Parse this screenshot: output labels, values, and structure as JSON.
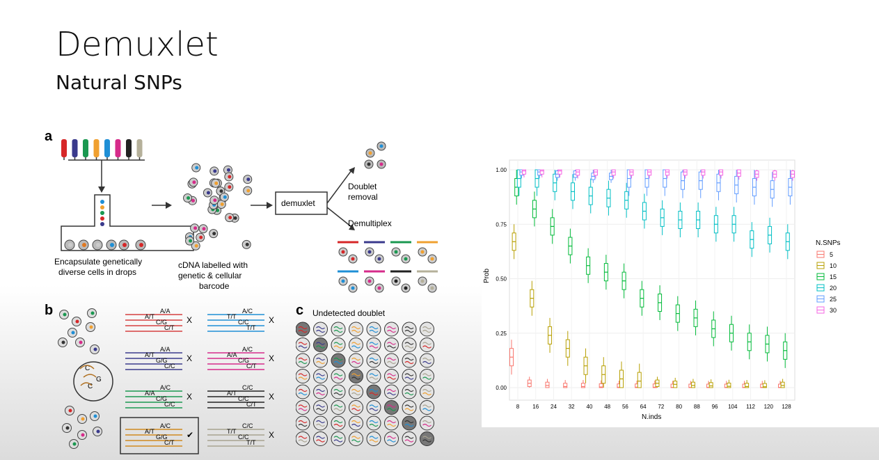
{
  "slide": {
    "title": "Demuxlet",
    "subtitle": "Natural SNPs"
  },
  "figure": {
    "panel_a": {
      "letter": "a",
      "caption_1": "Encapsulate genetically",
      "caption_2": "diverse cells in drops",
      "caption_3": "cDNA labelled with",
      "caption_4": "genetic & cellular",
      "caption_5": "barcode",
      "box_label": "demuxlet",
      "branch_1a": "Doublet",
      "branch_1b": "removal",
      "branch_2": "Demultiplex",
      "pipette_colors": [
        "#d62728",
        "#3a3a8c",
        "#1a9850",
        "#f0a030",
        "#1f8fd6",
        "#d62b8a",
        "#222222",
        "#b5b09a"
      ]
    },
    "panel_b": {
      "letter": "b",
      "groups": [
        {
          "color": "#d64040",
          "labels": [
            "A/A",
            "A/T",
            "C/G",
            "C/T"
          ],
          "mark": "X"
        },
        {
          "color": "#3a3a8c",
          "labels": [
            "A/A",
            "A/T",
            "G/G",
            "C/C"
          ],
          "mark": "X"
        },
        {
          "color": "#1a9850",
          "labels": [
            "A/C",
            "A/A",
            "C/G",
            "C/C"
          ],
          "mark": "X"
        },
        {
          "color": "#d08a20",
          "labels": [
            "A/C",
            "A/T",
            "G/G",
            "C/T"
          ],
          "mark": "✔"
        },
        {
          "color": "#1f8fd6",
          "labels": [
            "A/C",
            "T/T",
            "C/C",
            "T/T"
          ],
          "mark": "X"
        },
        {
          "color": "#d62b8a",
          "labels": [
            "A/C",
            "A/A",
            "C/G",
            "C/T"
          ],
          "mark": "X"
        },
        {
          "color": "#222222",
          "labels": [
            "C/C",
            "A/T",
            "C/C",
            "C/T"
          ],
          "mark": "X"
        },
        {
          "color": "#a8a390",
          "labels": [
            "C/C",
            "T/T",
            "C/C",
            "T/T"
          ],
          "mark": "X"
        }
      ]
    },
    "panel_c": {
      "letter": "c",
      "label": "Undetected doublet"
    }
  },
  "chart_data": {
    "type": "boxplot",
    "xlabel": "N.inds",
    "ylabel": "Prob",
    "x": [
      8,
      16,
      24,
      32,
      40,
      48,
      56,
      64,
      72,
      80,
      88,
      96,
      104,
      112,
      120,
      128
    ],
    "ylim": [
      0,
      1.0
    ],
    "yticks": [
      "0.00",
      "0.25",
      "0.50",
      "0.75",
      "1.00"
    ],
    "legend_title": "N.SNPs",
    "legend_position": "right",
    "series": [
      {
        "name": "5",
        "color": "#f8766d",
        "medians": [
          0.14,
          0.02,
          0.01,
          0.005,
          0.005,
          0.003,
          0.002,
          0.002,
          0.002,
          0.001,
          0.001,
          0.001,
          0.001,
          0.001,
          0.001,
          0.001
        ]
      },
      {
        "name": "10",
        "color": "#b79f00",
        "medians": [
          0.67,
          0.41,
          0.24,
          0.18,
          0.1,
          0.06,
          0.04,
          0.03,
          0.02,
          0.015,
          0.01,
          0.008,
          0.006,
          0.005,
          0.004,
          0.01
        ]
      },
      {
        "name": "15",
        "color": "#00ba38",
        "medians": [
          0.92,
          0.82,
          0.74,
          0.65,
          0.56,
          0.53,
          0.49,
          0.41,
          0.39,
          0.34,
          0.32,
          0.27,
          0.25,
          0.21,
          0.2,
          0.17
        ]
      },
      {
        "name": "20",
        "color": "#00bfc4",
        "medians": [
          0.96,
          0.96,
          0.94,
          0.9,
          0.88,
          0.87,
          0.86,
          0.81,
          0.78,
          0.77,
          0.77,
          0.75,
          0.75,
          0.68,
          0.7,
          0.67
        ]
      },
      {
        "name": "25",
        "color": "#619cff",
        "medians": [
          0.99,
          0.99,
          0.98,
          0.98,
          0.97,
          0.97,
          0.96,
          0.96,
          0.96,
          0.95,
          0.95,
          0.94,
          0.93,
          0.92,
          0.91,
          0.92
        ]
      },
      {
        "name": "30",
        "color": "#f564e3",
        "medians": [
          0.995,
          0.995,
          0.995,
          0.99,
          0.99,
          0.99,
          0.99,
          0.99,
          0.99,
          0.99,
          0.99,
          0.99,
          0.985,
          0.98,
          0.98,
          0.98
        ]
      }
    ]
  }
}
